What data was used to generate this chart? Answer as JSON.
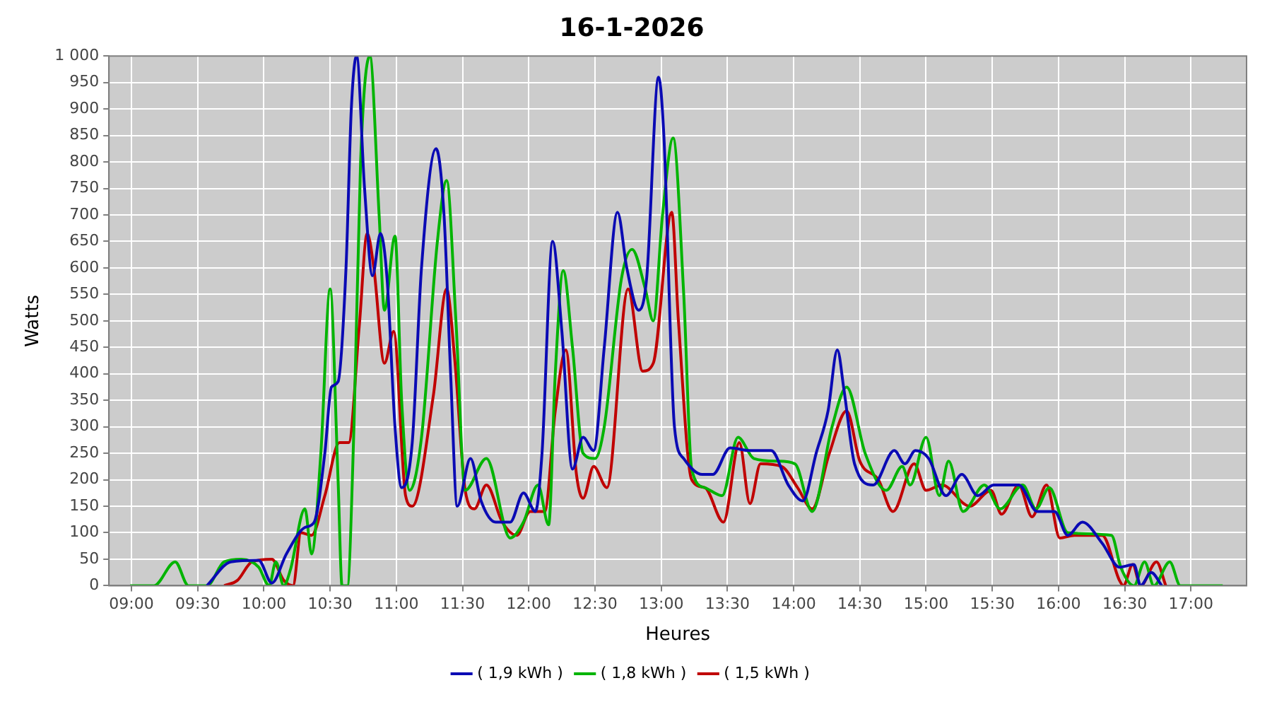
{
  "chart_data": {
    "type": "line",
    "title": "16-1-2026",
    "xlabel": "Heures",
    "ylabel": "Watts",
    "xlim": [
      8.83,
      17.42
    ],
    "xticks": [
      {
        "value": 9,
        "label": "09:00"
      },
      {
        "value": 9.5,
        "label": "09:30"
      },
      {
        "value": 10,
        "label": "10:00"
      },
      {
        "value": 10.5,
        "label": "10:30"
      },
      {
        "value": 11,
        "label": "11:00"
      },
      {
        "value": 11.5,
        "label": "11:30"
      },
      {
        "value": 12,
        "label": "12:00"
      },
      {
        "value": 12.5,
        "label": "12:30"
      },
      {
        "value": 13,
        "label": "13:00"
      },
      {
        "value": 13.5,
        "label": "13:30"
      },
      {
        "value": 14,
        "label": "14:00"
      },
      {
        "value": 14.5,
        "label": "14:30"
      },
      {
        "value": 15,
        "label": "15:00"
      },
      {
        "value": 15.5,
        "label": "15:30"
      },
      {
        "value": 16,
        "label": "16:00"
      },
      {
        "value": 16.5,
        "label": "16:30"
      },
      {
        "value": 17,
        "label": "17:00"
      }
    ],
    "ylim": [
      0,
      1000
    ],
    "yticks": [
      0,
      50,
      100,
      150,
      200,
      250,
      300,
      350,
      400,
      450,
      500,
      550,
      600,
      650,
      700,
      750,
      800,
      850,
      900,
      950,
      {
        "value": 1000,
        "label": "1 000"
      }
    ],
    "grid": true,
    "legend": "bottom",
    "marker": "none",
    "line_style": "solid",
    "series": [
      {
        "name": "( 1,9 kWh )",
        "color": "#0a0ab4",
        "x": [
          9.57,
          9.75,
          9.96,
          10.06,
          10.17,
          10.31,
          10.38,
          10.46,
          10.51,
          10.56,
          10.62,
          10.66,
          10.7,
          10.76,
          10.82,
          10.88,
          10.93,
          10.99,
          11.04,
          11.12,
          11.19,
          11.3,
          11.36,
          11.41,
          11.46,
          11.56,
          11.64,
          11.75,
          11.86,
          11.96,
          12.05,
          12.1,
          12.18,
          12.25,
          12.33,
          12.41,
          12.49,
          12.57,
          12.67,
          12.74,
          12.83,
          12.89,
          12.98,
          13.02,
          13.1,
          13.17,
          13.31,
          13.39,
          13.52,
          13.67,
          13.83,
          13.96,
          14.07,
          14.17,
          14.26,
          14.33,
          14.38,
          14.46,
          14.6,
          14.76,
          14.84,
          14.92,
          15.02,
          15.15,
          15.27,
          15.39,
          15.51,
          15.7,
          15.84,
          15.97,
          16.07,
          16.18,
          16.33,
          16.46,
          16.57,
          16.62,
          16.7,
          16.78
        ],
        "values": [
          0,
          45,
          48,
          5,
          60,
          110,
          120,
          250,
          375,
          385,
          600,
          900,
          1000,
          750,
          585,
          665,
          580,
          300,
          185,
          270,
          600,
          825,
          700,
          400,
          150,
          240,
          160,
          120,
          120,
          175,
          140,
          250,
          650,
          480,
          220,
          280,
          255,
          450,
          705,
          600,
          520,
          580,
          960,
          850,
          300,
          240,
          210,
          210,
          260,
          255,
          255,
          190,
          160,
          250,
          330,
          445,
          370,
          230,
          190,
          255,
          230,
          255,
          240,
          170,
          210,
          170,
          190,
          190,
          140,
          140,
          95,
          120,
          80,
          35,
          40,
          0,
          25,
          0
        ]
      },
      {
        "name": "( 1,8 kWh )",
        "color": "#00b400",
        "x": [
          8.99,
          9.17,
          9.33,
          9.43,
          9.57,
          9.7,
          9.83,
          9.96,
          10.04,
          10.09,
          10.15,
          10.2,
          10.31,
          10.36,
          10.43,
          10.5,
          10.56,
          10.59,
          10.63,
          10.68,
          10.73,
          10.8,
          10.87,
          10.91,
          10.99,
          11.04,
          11.1,
          11.19,
          11.31,
          11.38,
          11.45,
          11.52,
          11.68,
          11.86,
          11.96,
          12.07,
          12.15,
          12.2,
          12.26,
          12.33,
          12.41,
          12.5,
          12.57,
          12.7,
          12.78,
          12.88,
          12.94,
          13.01,
          13.09,
          13.17,
          13.23,
          13.33,
          13.46,
          13.58,
          13.7,
          13.88,
          14.01,
          14.14,
          14.29,
          14.4,
          14.54,
          14.7,
          14.82,
          14.88,
          15,
          15.1,
          15.17,
          15.28,
          15.44,
          15.56,
          15.73,
          15.83,
          15.93,
          16.07,
          16.4,
          16.47,
          16.57,
          16.65,
          16.72,
          16.84,
          16.92,
          17,
          17.24
        ],
        "values": [
          0,
          0,
          45,
          0,
          0,
          45,
          50,
          35,
          0,
          45,
          0,
          30,
          145,
          60,
          250,
          560,
          200,
          0,
          0,
          300,
          800,
          1000,
          700,
          520,
          660,
          350,
          180,
          280,
          650,
          765,
          500,
          180,
          240,
          90,
          120,
          190,
          115,
          400,
          595,
          450,
          250,
          240,
          300,
          580,
          635,
          560,
          500,
          700,
          845,
          550,
          220,
          185,
          170,
          280,
          240,
          235,
          230,
          140,
          300,
          375,
          250,
          180,
          225,
          190,
          280,
          170,
          235,
          140,
          190,
          145,
          190,
          145,
          185,
          100,
          95,
          35,
          0,
          45,
          0,
          45,
          0,
          0,
          0
        ]
      },
      {
        "name": "( 1,5 kWh )",
        "color": "#c00000",
        "x": [
          9.7,
          9.8,
          9.91,
          10.06,
          10.15,
          10.22,
          10.28,
          10.36,
          10.46,
          10.57,
          10.64,
          10.72,
          10.78,
          10.83,
          10.91,
          10.98,
          11.07,
          11.12,
          11.28,
          11.38,
          11.44,
          11.52,
          11.59,
          11.68,
          11.8,
          11.91,
          12.01,
          12.12,
          12.2,
          12.28,
          12.36,
          12.41,
          12.49,
          12.59,
          12.75,
          12.86,
          12.94,
          13.08,
          13.13,
          13.23,
          13.33,
          13.47,
          13.59,
          13.67,
          13.75,
          13.91,
          14.03,
          14.14,
          14.27,
          14.4,
          14.5,
          14.64,
          14.75,
          14.91,
          15,
          15.12,
          15.33,
          15.49,
          15.57,
          15.7,
          15.8,
          15.91,
          16.01,
          16.12,
          16.33,
          16.46,
          16.49,
          16.56,
          16.62,
          16.74,
          16.81
        ],
        "values": [
          0,
          10,
          45,
          50,
          10,
          0,
          100,
          95,
          170,
          270,
          270,
          490,
          665,
          600,
          420,
          480,
          170,
          150,
          360,
          560,
          430,
          180,
          145,
          190,
          120,
          95,
          140,
          140,
          330,
          445,
          210,
          165,
          225,
          185,
          560,
          405,
          420,
          705,
          500,
          200,
          185,
          120,
          270,
          155,
          230,
          225,
          185,
          145,
          250,
          330,
          235,
          200,
          140,
          230,
          180,
          190,
          150,
          180,
          135,
          190,
          130,
          190,
          90,
          95,
          95,
          10,
          0,
          40,
          0,
          45,
          0
        ]
      }
    ]
  }
}
